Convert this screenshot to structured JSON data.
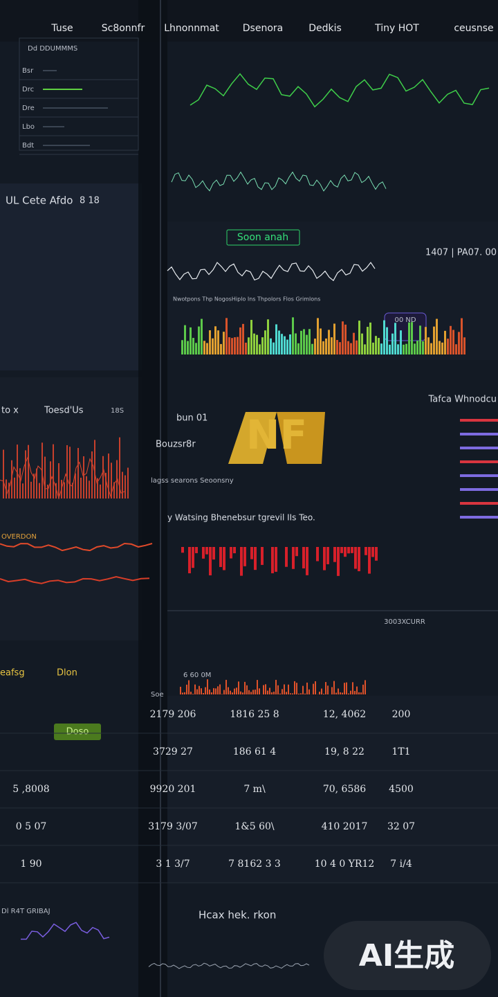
{
  "nav": [
    "Tuse",
    "Sc8onnfr",
    "Lhnonnmat",
    "Dsenora",
    "Dedkis",
    "Tiny HOT",
    "ceusnse"
  ],
  "top_table": {
    "title": "Dd DDUMMMS",
    "rows": [
      "Bsr",
      "Drc",
      "Dre",
      "Lbo",
      "Bdt"
    ]
  },
  "left_panel": {
    "title": "UL Cete Afdo",
    "meta": "8 18"
  },
  "center_panel": {
    "badge": "Soon anah",
    "stat": "1407  |  PA07. 00",
    "legend": "Nwotpons  Thp  NogosHiplo  Ins  Thpolors  Flos  Grimlons",
    "badge_value": "00 ND"
  },
  "mid_left": {
    "title": "to x",
    "subtitle": "Toesd'Us",
    "meta": "18S",
    "tag": "OVERDON"
  },
  "mid_center": {
    "label": "bun 01",
    "sublabel": "Bouzsr8r",
    "logo": "NF",
    "caption": "lagss searons Seoonsny",
    "headline": "y  Watsing Bhenebsur tgrevil IIs   Teo.",
    "footer": "3003XCURR"
  },
  "right_panel": {
    "title": "Tafca Whnodcu"
  },
  "lower_left": {
    "title": "eafsg",
    "badge": "Dlon",
    "button": "Doso"
  },
  "lower_center": {
    "label": "Soe",
    "stat": "6 60 0M"
  },
  "table": {
    "rows": [
      [
        "2179  206",
        "1816 25  8",
        "12, 4062",
        "200"
      ],
      [
        "3729  27",
        "186 61  4",
        "19, 8 22",
        "1T1"
      ],
      [
        "9920  201",
        "7 m\\",
        "70, 6586",
        "4500"
      ],
      [
        "3179  3/07",
        "1&5 60\\",
        "410 2017",
        "32 07"
      ],
      [
        "3 1  3/7",
        "7 8162 3  3",
        "10 4 0 YR12",
        "7 i/4"
      ]
    ],
    "left_column": [
      "5 ,8008",
      "0 5 07",
      "1 90"
    ]
  },
  "bottom": {
    "left_title": "Dl R4T GRIBAJ",
    "center_title": "Hcax hek. rkon"
  },
  "watermark": "AI生成"
}
